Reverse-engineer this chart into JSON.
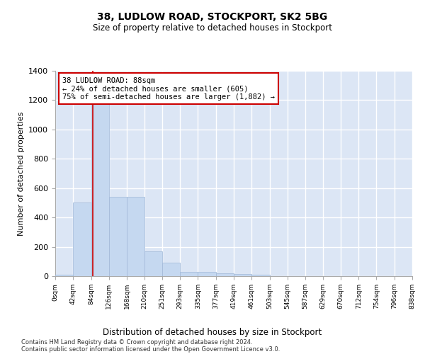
{
  "title1": "38, LUDLOW ROAD, STOCKPORT, SK2 5BG",
  "title2": "Size of property relative to detached houses in Stockport",
  "xlabel": "Distribution of detached houses by size in Stockport",
  "ylabel": "Number of detached properties",
  "bar_color": "#c5d8f0",
  "bar_edge_color": "#a0b8d8",
  "background_color": "#dce6f5",
  "grid_color": "#ffffff",
  "fig_background": "#ffffff",
  "bin_edges": [
    0,
    42,
    84,
    126,
    168,
    210,
    251,
    293,
    335,
    377,
    419,
    461,
    503,
    545,
    587,
    629,
    670,
    712,
    754,
    796,
    838
  ],
  "bar_heights": [
    10,
    500,
    1230,
    540,
    540,
    170,
    90,
    30,
    30,
    20,
    15,
    10,
    0,
    0,
    0,
    0,
    0,
    0,
    0,
    0
  ],
  "tick_labels": [
    "0sqm",
    "42sqm",
    "84sqm",
    "126sqm",
    "168sqm",
    "210sqm",
    "251sqm",
    "293sqm",
    "335sqm",
    "377sqm",
    "419sqm",
    "461sqm",
    "503sqm",
    "545sqm",
    "587sqm",
    "629sqm",
    "670sqm",
    "712sqm",
    "754sqm",
    "796sqm",
    "838sqm"
  ],
  "ylim": [
    0,
    1400
  ],
  "yticks": [
    0,
    200,
    400,
    600,
    800,
    1000,
    1200,
    1400
  ],
  "red_line_x": 88,
  "annotation_title": "38 LUDLOW ROAD: 88sqm",
  "annotation_line1": "← 24% of detached houses are smaller (605)",
  "annotation_line2": "75% of semi-detached houses are larger (1,882) →",
  "annotation_box_color": "#ffffff",
  "annotation_box_edge": "#cc0000",
  "red_line_color": "#cc0000",
  "footer1": "Contains HM Land Registry data © Crown copyright and database right 2024.",
  "footer2": "Contains public sector information licensed under the Open Government Licence v3.0."
}
